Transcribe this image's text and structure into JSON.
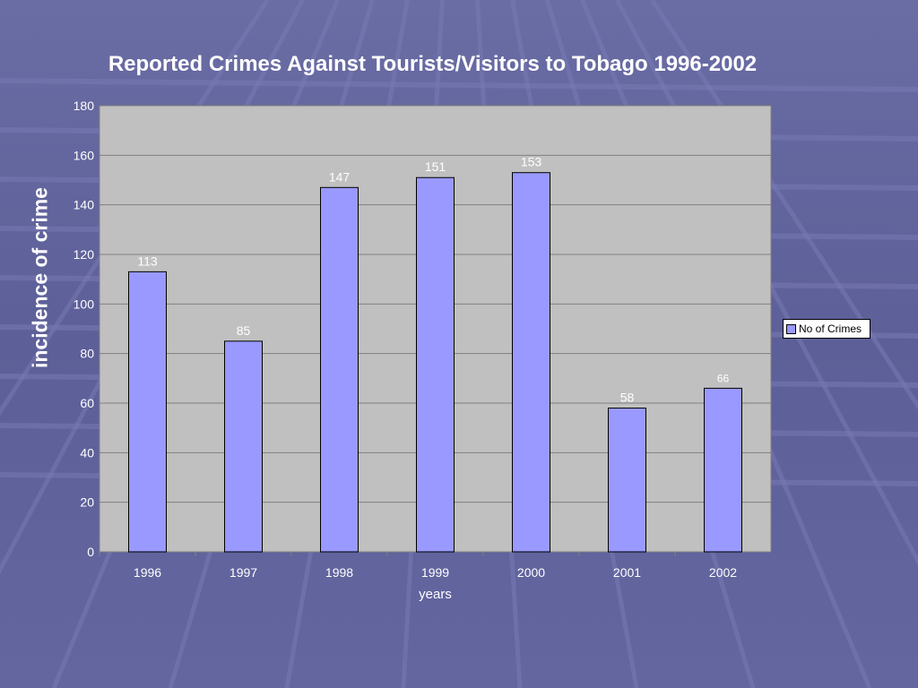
{
  "colors": {
    "background": "#5f6097",
    "plot_area": "#c0c0c0",
    "bar_fill": "#9999ff",
    "text": "#ffffff"
  },
  "chart_data": {
    "type": "bar",
    "title": "Reported Crimes Against Tourists/Visitors to Tobago 1996-2002",
    "xlabel": "years",
    "ylabel": "incidence of crime",
    "categories": [
      "1996",
      "1997",
      "1998",
      "1999",
      "2000",
      "2001",
      "2002"
    ],
    "series": [
      {
        "name": "No of Crimes",
        "values": [
          113,
          85,
          147,
          151,
          153,
          58,
          66
        ]
      }
    ],
    "data_labels": [
      "113",
      "85",
      "147",
      "151",
      "153",
      "58",
      "66"
    ],
    "ylim": [
      0,
      180
    ],
    "yticks": [
      "0",
      "20",
      "40",
      "60",
      "80",
      "100",
      "120",
      "140",
      "160",
      "180"
    ],
    "grid": true,
    "legend_position": "right"
  }
}
